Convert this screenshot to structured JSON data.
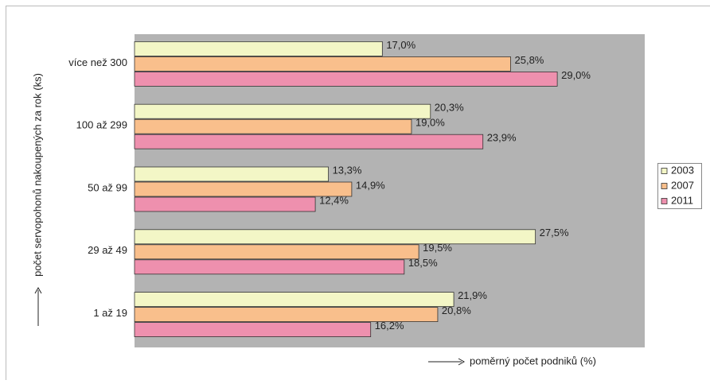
{
  "chart_data": {
    "type": "hbar",
    "y_label": "počet servopohonů nakoupených za rok (ks)",
    "x_label": "poměrný počet podniků (%)",
    "categories": [
      "více než 300",
      "100 až 299",
      "50 až 99",
      "29 až 49",
      "1 až 19"
    ],
    "xlim": [
      0,
      35
    ],
    "series": [
      {
        "name": "2003",
        "color": "#f3f6c6",
        "values": [
          17.0,
          20.3,
          13.3,
          27.5,
          21.9
        ],
        "value_labels": [
          "17,0%",
          "20,3%",
          "13,3%",
          "27,5%",
          "21,9%"
        ]
      },
      {
        "name": "2007",
        "color": "#f9bf8c",
        "values": [
          25.8,
          19.0,
          14.9,
          19.5,
          20.8
        ],
        "value_labels": [
          "25,8%",
          "19,0%",
          "14,9%",
          "19,5%",
          "20,8%"
        ]
      },
      {
        "name": "2011",
        "color": "#ee90ae",
        "values": [
          29.0,
          23.9,
          12.4,
          18.5,
          16.2
        ],
        "value_labels": [
          "29,0%",
          "23,9%",
          "12,4%",
          "18,5%",
          "16,2%"
        ]
      }
    ],
    "legend": "right"
  }
}
